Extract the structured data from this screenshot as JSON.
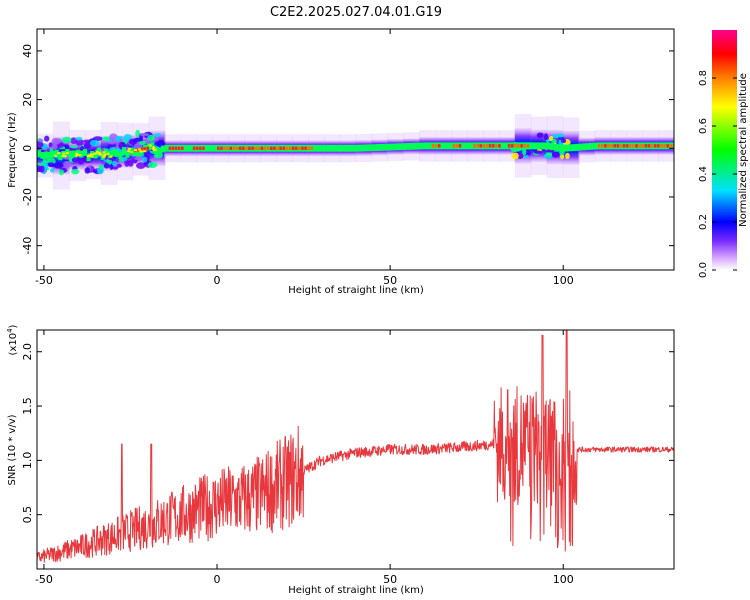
{
  "title": "C2E2.2025.027.04.01.G19",
  "spectrogram": {
    "type": "heatmap",
    "xlabel": "Height of straight line (km)",
    "ylabel": "Frequency (Hz)",
    "xlim": [
      -52,
      132
    ],
    "ylim": [
      -50,
      49
    ],
    "xticks": [
      -50,
      0,
      50,
      100
    ],
    "yticks": [
      -40,
      -20,
      0,
      20,
      40
    ],
    "xtick_labels": [
      "-50",
      "0",
      "50",
      "100"
    ],
    "ytick_labels": [
      "-40",
      "-20",
      "0",
      "20",
      "40"
    ],
    "ridge_track": [
      {
        "x": -52,
        "y": -3
      },
      {
        "x": -40,
        "y": -3
      },
      {
        "x": -30,
        "y": -2
      },
      {
        "x": -20,
        "y": 0
      },
      {
        "x": 0,
        "y": 0
      },
      {
        "x": 20,
        "y": 0
      },
      {
        "x": 40,
        "y": 0
      },
      {
        "x": 60,
        "y": 1
      },
      {
        "x": 80,
        "y": 1
      },
      {
        "x": 95,
        "y": 1
      },
      {
        "x": 100,
        "y": 0
      },
      {
        "x": 110,
        "y": 1
      },
      {
        "x": 132,
        "y": 1
      }
    ],
    "colorbar": {
      "label": "Normalized spectral amplitude",
      "range": [
        0,
        1
      ],
      "ticks": [
        0.0,
        0.2,
        0.4,
        0.6,
        0.8
      ],
      "tick_labels": [
        "0.0",
        "0.2",
        "0.4",
        "0.6",
        "0.8"
      ],
      "colors": [
        "#ffffff",
        "#d8a8ff",
        "#5a00ff",
        "#0000ff",
        "#00e0ff",
        "#00ff00",
        "#ffff00",
        "#ff8000",
        "#ff0000",
        "#ff0090"
      ]
    }
  },
  "snr": {
    "type": "line",
    "xlabel": "Height of straight line (km)",
    "ylabel": "SNR (10 * v/v)",
    "y_multiplier": "(x10",
    "y_multiplier_exp": "4",
    "y_multiplier_close": ")",
    "xlim": [
      -52,
      132
    ],
    "ylim": [
      0,
      22000
    ],
    "xticks": [
      -50,
      0,
      50,
      100
    ],
    "yticks": [
      5000,
      10000,
      15000,
      20000
    ],
    "xtick_labels": [
      "-50",
      "0",
      "50",
      "100"
    ],
    "ytick_labels": [
      "0.5",
      "1.0",
      "1.5",
      "2.0"
    ],
    "color": "#e8383d",
    "trend": [
      {
        "x": -52,
        "y": 1000
      },
      {
        "x": -40,
        "y": 2000
      },
      {
        "x": -30,
        "y": 3000
      },
      {
        "x": -20,
        "y": 4000
      },
      {
        "x": -10,
        "y": 5000
      },
      {
        "x": 0,
        "y": 6000
      },
      {
        "x": 10,
        "y": 6500
      },
      {
        "x": 20,
        "y": 8000
      },
      {
        "x": 30,
        "y": 10000
      },
      {
        "x": 40,
        "y": 10700
      },
      {
        "x": 50,
        "y": 11000
      },
      {
        "x": 60,
        "y": 11000
      },
      {
        "x": 70,
        "y": 11200
      },
      {
        "x": 80,
        "y": 11500
      },
      {
        "x": 100,
        "y": 11000
      },
      {
        "x": 110,
        "y": 11000
      },
      {
        "x": 120,
        "y": 11000
      },
      {
        "x": 132,
        "y": 11000
      }
    ],
    "spikes": [
      {
        "x": -27.5,
        "y": 11500
      },
      {
        "x": -19,
        "y": 11500
      },
      {
        "x": 84,
        "y": 16500
      },
      {
        "x": 94,
        "y": 21500
      },
      {
        "x": 101,
        "y": 22000
      }
    ]
  }
}
